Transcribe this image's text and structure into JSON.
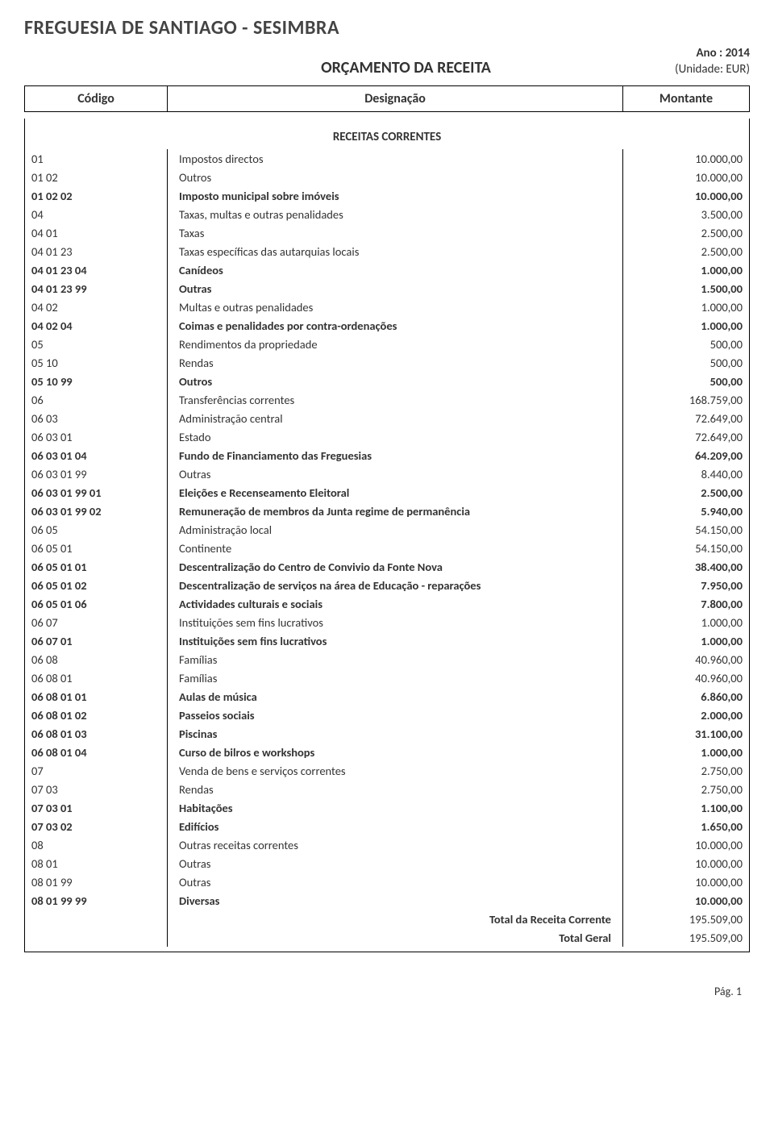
{
  "header": {
    "entity": "FREGUESIA DE SANTIAGO - SESIMBRA",
    "title": "ORÇAMENTO DA RECEITA",
    "year_label": "Ano : 2014",
    "unit_label": "(Unidade: EUR)"
  },
  "columns": {
    "code": "Código",
    "desc": "Designação",
    "amount": "Montante"
  },
  "section_title": "RECEITAS CORRENTES",
  "rows": [
    {
      "code": "01",
      "desc": "Impostos directos",
      "amount": "10.000,00",
      "bold": false
    },
    {
      "code": "01 02",
      "desc": "Outros",
      "amount": "10.000,00",
      "bold": false
    },
    {
      "code": "01 02 02",
      "desc": "Imposto municipal sobre imóveis",
      "amount": "10.000,00",
      "bold": true
    },
    {
      "code": "04",
      "desc": "Taxas, multas e outras penalidades",
      "amount": "3.500,00",
      "bold": false
    },
    {
      "code": "04 01",
      "desc": "Taxas",
      "amount": "2.500,00",
      "bold": false
    },
    {
      "code": "04 01 23",
      "desc": "Taxas específicas das autarquias locais",
      "amount": "2.500,00",
      "bold": false
    },
    {
      "code": "04 01 23 04",
      "desc": "Canídeos",
      "amount": "1.000,00",
      "bold": true
    },
    {
      "code": "04 01 23 99",
      "desc": "Outras",
      "amount": "1.500,00",
      "bold": true
    },
    {
      "code": "04 02",
      "desc": "Multas e outras penalidades",
      "amount": "1.000,00",
      "bold": false
    },
    {
      "code": "04 02 04",
      "desc": "Coimas e penalidades por contra-ordenações",
      "amount": "1.000,00",
      "bold": true
    },
    {
      "code": "05",
      "desc": "Rendimentos da propriedade",
      "amount": "500,00",
      "bold": false
    },
    {
      "code": "05 10",
      "desc": "Rendas",
      "amount": "500,00",
      "bold": false
    },
    {
      "code": "05 10 99",
      "desc": "Outros",
      "amount": "500,00",
      "bold": true
    },
    {
      "code": "06",
      "desc": "Transferências correntes",
      "amount": "168.759,00",
      "bold": false
    },
    {
      "code": "06 03",
      "desc": "Administração central",
      "amount": "72.649,00",
      "bold": false
    },
    {
      "code": "06 03 01",
      "desc": "Estado",
      "amount": "72.649,00",
      "bold": false
    },
    {
      "code": "06 03 01 04",
      "desc": "Fundo de Financiamento das Freguesias",
      "amount": "64.209,00",
      "bold": true
    },
    {
      "code": "06 03 01 99",
      "desc": "Outras",
      "amount": "8.440,00",
      "bold": false
    },
    {
      "code": "06 03 01 99 01",
      "desc": "Eleições e Recenseamento Eleitoral",
      "amount": "2.500,00",
      "bold": true
    },
    {
      "code": "06 03 01 99 02",
      "desc": "Remuneração de  membros da Junta  regime de permanência",
      "amount": "5.940,00",
      "bold": true
    },
    {
      "code": "06 05",
      "desc": "Administração local",
      "amount": "54.150,00",
      "bold": false
    },
    {
      "code": "06 05 01",
      "desc": "Continente",
      "amount": "54.150,00",
      "bold": false
    },
    {
      "code": "06 05 01 01",
      "desc": "Descentralização do Centro de Convivio da Fonte Nova",
      "amount": "38.400,00",
      "bold": true
    },
    {
      "code": "06 05 01 02",
      "desc": "Descentralização de serviços na área de Educação - reparações",
      "amount": "7.950,00",
      "bold": true
    },
    {
      "code": "06 05 01 06",
      "desc": "Actividades culturais e sociais",
      "amount": "7.800,00",
      "bold": true
    },
    {
      "code": "06 07",
      "desc": "Instituições sem fins lucrativos",
      "amount": "1.000,00",
      "bold": false
    },
    {
      "code": "06 07 01",
      "desc": "Instituições sem fins lucrativos",
      "amount": "1.000,00",
      "bold": true
    },
    {
      "code": "06 08",
      "desc": "Famílias",
      "amount": "40.960,00",
      "bold": false
    },
    {
      "code": "06 08 01",
      "desc": "Famílias",
      "amount": "40.960,00",
      "bold": false
    },
    {
      "code": "06 08 01 01",
      "desc": "Aulas de música",
      "amount": "6.860,00",
      "bold": true
    },
    {
      "code": "06 08 01 02",
      "desc": "Passeios sociais",
      "amount": "2.000,00",
      "bold": true
    },
    {
      "code": "06 08 01 03",
      "desc": "Piscinas",
      "amount": "31.100,00",
      "bold": true
    },
    {
      "code": "06 08 01 04",
      "desc": "Curso de  bilros  e  workshops",
      "amount": "1.000,00",
      "bold": true
    },
    {
      "code": "07",
      "desc": "Venda de bens e serviços correntes",
      "amount": "2.750,00",
      "bold": false
    },
    {
      "code": "07 03",
      "desc": "Rendas",
      "amount": "2.750,00",
      "bold": false
    },
    {
      "code": "07 03 01",
      "desc": "Habitações",
      "amount": "1.100,00",
      "bold": true
    },
    {
      "code": "07 03 02",
      "desc": "Edifícios",
      "amount": "1.650,00",
      "bold": true
    },
    {
      "code": "08",
      "desc": "Outras receitas correntes",
      "amount": "10.000,00",
      "bold": false
    },
    {
      "code": "08 01",
      "desc": "Outras",
      "amount": "10.000,00",
      "bold": false
    },
    {
      "code": "08 01 99",
      "desc": "Outras",
      "amount": "10.000,00",
      "bold": false
    },
    {
      "code": "08 01 99 99",
      "desc": "Diversas",
      "amount": "10.000,00",
      "bold": true
    }
  ],
  "totals": [
    {
      "label": "Total da Receita Corrente",
      "amount": "195.509,00"
    },
    {
      "label": "Total Geral",
      "amount": "195.509,00"
    }
  ],
  "footer": {
    "page": "Pág. 1"
  }
}
